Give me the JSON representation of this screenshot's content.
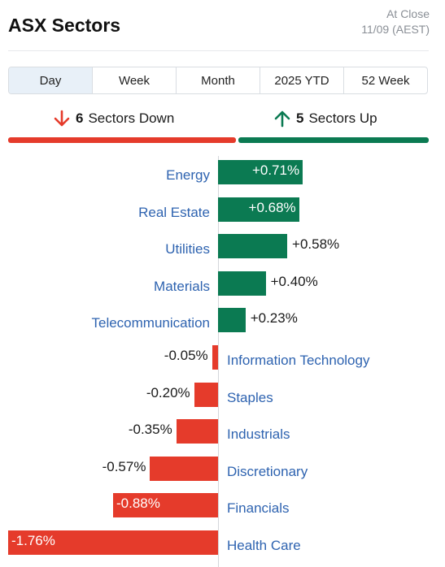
{
  "header": {
    "title": "ASX Sectors",
    "status": "At Close",
    "date": "11/09 (AEST)"
  },
  "tabs": [
    {
      "label": "Day",
      "active": true
    },
    {
      "label": "Week",
      "active": false
    },
    {
      "label": "Month",
      "active": false
    },
    {
      "label": "2025 YTD",
      "active": false
    },
    {
      "label": "52 Week",
      "active": false
    }
  ],
  "summary": {
    "down": {
      "count": "6",
      "label": "Sectors Down"
    },
    "up": {
      "count": "5",
      "label": "Sectors Up"
    }
  },
  "colors": {
    "up": "#0b7a52",
    "down": "#e53b2b",
    "label": "#2e63b0"
  },
  "chart_data": {
    "type": "bar",
    "orientation": "horizontal",
    "unit": "%",
    "categories": [
      "Energy",
      "Real Estate",
      "Utilities",
      "Materials",
      "Telecommunication",
      "Information Technology",
      "Staples",
      "Industrials",
      "Discretionary",
      "Financials",
      "Health Care"
    ],
    "values": [
      0.71,
      0.68,
      0.58,
      0.4,
      0.23,
      -0.05,
      -0.2,
      -0.35,
      -0.57,
      -0.88,
      -1.76
    ],
    "value_labels": [
      "+0.71%",
      "+0.68%",
      "+0.58%",
      "+0.40%",
      "+0.23%",
      "-0.05%",
      "-0.20%",
      "-0.35%",
      "-0.57%",
      "-0.88%",
      "-1.76%"
    ]
  }
}
